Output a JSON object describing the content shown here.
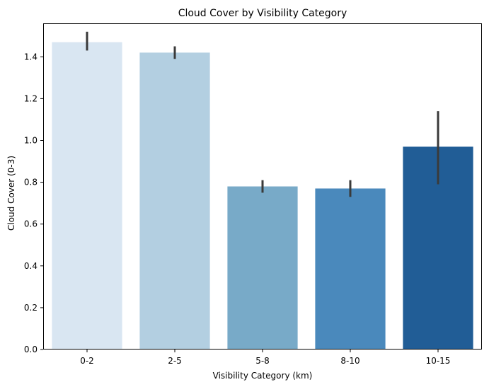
{
  "chart_data": {
    "type": "bar",
    "title": "Cloud Cover by Visibility Category",
    "xlabel": "Visibility Category (km)",
    "ylabel": "Cloud Cover (0-3)",
    "categories": [
      "0-2",
      "2-5",
      "5-8",
      "8-10",
      "10-15"
    ],
    "values": [
      1.47,
      1.42,
      0.78,
      0.77,
      0.97
    ],
    "error_bars": [
      {
        "low": 1.43,
        "high": 1.52
      },
      {
        "low": 1.39,
        "high": 1.45
      },
      {
        "low": 0.75,
        "high": 0.81
      },
      {
        "low": 0.73,
        "high": 0.81
      },
      {
        "low": 0.79,
        "high": 1.14
      }
    ],
    "bar_colors": [
      "#d9e6f2",
      "#b3cfe1",
      "#78aac8",
      "#4a89bc",
      "#215d96"
    ],
    "error_bar_color": "#3a3a3a",
    "ylim": [
      0,
      1.56
    ],
    "yticks": [
      0.0,
      0.2,
      0.4,
      0.6,
      0.8,
      1.0,
      1.2,
      1.4
    ],
    "ytick_labels": [
      "0.0",
      "0.2",
      "0.4",
      "0.6",
      "0.8",
      "1.0",
      "1.2",
      "1.4"
    ],
    "grid": false,
    "legend": null
  }
}
